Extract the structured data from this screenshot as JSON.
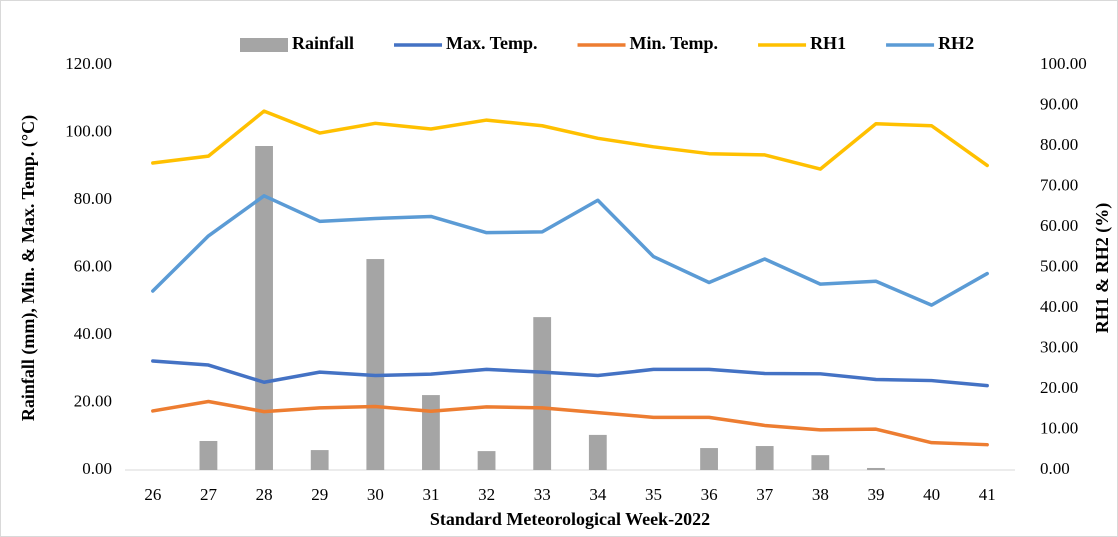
{
  "chart_data": {
    "type": "combo",
    "xlabel": "Standard Meteorological Week-2022",
    "ylabel": "Rainfall (mm), Min. & Max. Temp. (°C)",
    "y2label": "RH1 & RH2 (%)",
    "categories": [
      "26",
      "27",
      "28",
      "29",
      "30",
      "31",
      "32",
      "33",
      "34",
      "35",
      "36",
      "37",
      "38",
      "39",
      "40",
      "41"
    ],
    "series": [
      {
        "name": "Rainfall",
        "type": "bar",
        "color": "#a5a5a5",
        "values": [
          0,
          8.6,
          96,
          5.9,
          62.5,
          22.2,
          5.6,
          45.3,
          10.4,
          0,
          6.5,
          7.1,
          4.4,
          0.6,
          0,
          0
        ]
      },
      {
        "name": "Max. Temp.",
        "type": "line",
        "color": "#4472c4",
        "values": [
          32.3,
          31.1,
          26,
          29,
          28,
          28.4,
          29.8,
          29,
          28,
          29.8,
          29.8,
          28.6,
          28.5,
          26.8,
          26.5,
          25
        ]
      },
      {
        "name": "Min. Temp.",
        "type": "line",
        "color": "#ed7d31",
        "values": [
          17.5,
          20.3,
          17.3,
          18.4,
          18.8,
          17.4,
          18.7,
          18.4,
          17,
          15.6,
          15.6,
          13.2,
          11.9,
          12.1,
          8.1,
          7.5
        ]
      },
      {
        "name": "RH1",
        "type": "line",
        "axis": "y2",
        "color": "#ffc000",
        "values": [
          75.8,
          77.5,
          88.6,
          83.2,
          85.6,
          84.2,
          86.4,
          85,
          81.9,
          79.8,
          78.1,
          77.8,
          74.3,
          85.5,
          85,
          75.2
        ]
      },
      {
        "name": "RH2",
        "type": "line",
        "axis": "y2",
        "color": "#5b9bd5",
        "values": [
          44.2,
          57.8,
          67.7,
          61.4,
          62.1,
          62.6,
          58.6,
          58.8,
          66.6,
          52.7,
          46.3,
          52.1,
          45.9,
          46.6,
          40.7,
          48.5
        ]
      }
    ],
    "ylim": [
      0,
      120
    ],
    "yticks": [
      {
        "value": 0,
        "label": "0.00"
      },
      {
        "value": 20,
        "label": "20.00"
      },
      {
        "value": 40,
        "label": "40.00"
      },
      {
        "value": 60,
        "label": "60.00"
      },
      {
        "value": 80,
        "label": "80.00"
      },
      {
        "value": 100,
        "label": "100.00"
      },
      {
        "value": 120,
        "label": "120.00"
      }
    ],
    "y2lim": [
      0,
      100
    ],
    "y2ticks": [
      {
        "value": 0,
        "label": "0.00"
      },
      {
        "value": 10,
        "label": "10.00"
      },
      {
        "value": 20,
        "label": "20.00"
      },
      {
        "value": 30,
        "label": "30.00"
      },
      {
        "value": 40,
        "label": "40.00"
      },
      {
        "value": 50,
        "label": "50.00"
      },
      {
        "value": 60,
        "label": "60.00"
      },
      {
        "value": 70,
        "label": "70.00"
      },
      {
        "value": 80,
        "label": "80.00"
      },
      {
        "value": 90,
        "label": "90.00"
      },
      {
        "value": 100,
        "label": "100.00"
      }
    ],
    "legend": "top"
  }
}
